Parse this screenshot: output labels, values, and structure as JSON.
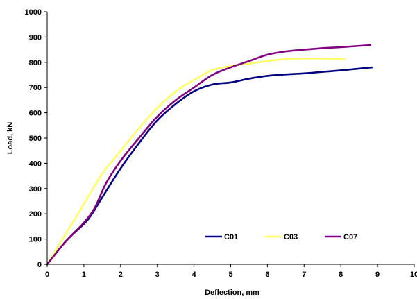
{
  "chart_data": {
    "type": "line",
    "title": "",
    "xlabel": "Deflection, mm",
    "ylabel": "Load, kN",
    "xlim": [
      0,
      10
    ],
    "ylim": [
      0,
      1000
    ],
    "xticks": [
      "0",
      "1",
      "2",
      "3",
      "4",
      "5",
      "6",
      "7",
      "8",
      "9",
      "10"
    ],
    "yticks": [
      "0",
      "100",
      "200",
      "300",
      "400",
      "500",
      "600",
      "700",
      "800",
      "900",
      "1000"
    ],
    "grid": false,
    "legend_position": "bottom-right inside plot",
    "series": [
      {
        "name": "C01",
        "color": "#000080",
        "points": [
          [
            0,
            0
          ],
          [
            0.5,
            90
          ],
          [
            1,
            160
          ],
          [
            1.2,
            195
          ],
          [
            1.5,
            265
          ],
          [
            2,
            380
          ],
          [
            2.5,
            480
          ],
          [
            3,
            570
          ],
          [
            3.5,
            635
          ],
          [
            4,
            685
          ],
          [
            4.5,
            712
          ],
          [
            5,
            720
          ],
          [
            5.5,
            735
          ],
          [
            6,
            746
          ],
          [
            6.5,
            752
          ],
          [
            7,
            756
          ],
          [
            7.5,
            762
          ],
          [
            8,
            768
          ],
          [
            8.5,
            775
          ],
          [
            8.85,
            780
          ]
        ]
      },
      {
        "name": "C03",
        "color": "#FFFF66",
        "points": [
          [
            0,
            0
          ],
          [
            0.5,
            120
          ],
          [
            1,
            240
          ],
          [
            1.5,
            360
          ],
          [
            2,
            450
          ],
          [
            2.5,
            540
          ],
          [
            3,
            620
          ],
          [
            3.5,
            685
          ],
          [
            4,
            730
          ],
          [
            4.5,
            770
          ],
          [
            5,
            785
          ],
          [
            5.5,
            795
          ],
          [
            6,
            805
          ],
          [
            6.5,
            813
          ],
          [
            7,
            815
          ],
          [
            7.5,
            815
          ],
          [
            8.1,
            813
          ]
        ]
      },
      {
        "name": "C07",
        "color": "#800080",
        "points": [
          [
            0,
            0
          ],
          [
            0.5,
            90
          ],
          [
            1,
            165
          ],
          [
            1.3,
            225
          ],
          [
            1.6,
            320
          ],
          [
            2,
            410
          ],
          [
            2.5,
            500
          ],
          [
            3,
            585
          ],
          [
            3.5,
            650
          ],
          [
            4,
            700
          ],
          [
            4.5,
            750
          ],
          [
            5,
            780
          ],
          [
            5.5,
            805
          ],
          [
            6,
            830
          ],
          [
            6.5,
            843
          ],
          [
            7,
            850
          ],
          [
            7.5,
            856
          ],
          [
            8,
            860
          ],
          [
            8.5,
            865
          ],
          [
            8.8,
            868
          ]
        ]
      }
    ]
  }
}
